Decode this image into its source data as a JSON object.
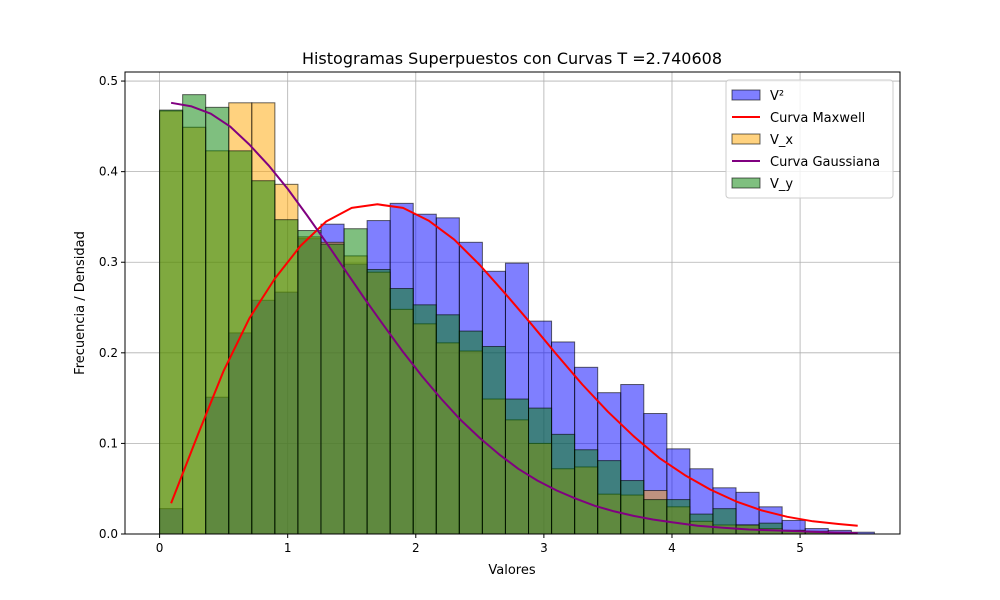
{
  "chart_data": {
    "type": "bar",
    "title": "Histogramas Superpuestos con Curvas T =2.740608",
    "xlabel": "Valores",
    "ylabel": "Frecuencia / Densidad",
    "xlim": [
      -0.27,
      5.78
    ],
    "ylim": [
      0,
      0.51
    ],
    "xticks": [
      0,
      1,
      2,
      3,
      4,
      5
    ],
    "yticks": [
      0.0,
      0.1,
      0.2,
      0.3,
      0.4,
      0.5
    ],
    "grid": true,
    "legend_position": "top-right",
    "bin_width": 0.18,
    "series": [
      {
        "name": "V²",
        "kind": "histogram",
        "color": "#0000ff",
        "opacity": 0.5,
        "x_start": 0.0,
        "values": [
          0.028,
          0.0,
          0.151,
          0.222,
          0.258,
          0.267,
          0.326,
          0.342,
          0.298,
          0.346,
          0.365,
          0.353,
          0.349,
          0.322,
          0.29,
          0.299,
          0.235,
          0.212,
          0.184,
          0.156,
          0.165,
          0.133,
          0.094,
          0.072,
          0.051,
          0.046,
          0.03,
          0.015,
          0.006,
          0.004,
          0.002,
          0.0,
          0.0,
          0.0,
          0.0,
          0.0,
          0.0,
          0.0,
          0.0,
          0.0,
          0.0,
          0.0,
          0.0,
          0.0
        ]
      },
      {
        "name": "Curva Maxwell",
        "kind": "line",
        "color": "#ff0000",
        "x": [
          0.09,
          0.3,
          0.5,
          0.7,
          0.9,
          1.1,
          1.3,
          1.5,
          1.7,
          1.9,
          2.1,
          2.3,
          2.5,
          2.7,
          2.9,
          3.1,
          3.3,
          3.5,
          3.7,
          3.9,
          4.1,
          4.3,
          4.5,
          4.7,
          4.9,
          5.1,
          5.3,
          5.45
        ],
        "y": [
          0.034,
          0.11,
          0.18,
          0.238,
          0.282,
          0.318,
          0.345,
          0.36,
          0.364,
          0.36,
          0.346,
          0.325,
          0.297,
          0.265,
          0.232,
          0.198,
          0.165,
          0.135,
          0.108,
          0.084,
          0.065,
          0.049,
          0.036,
          0.026,
          0.019,
          0.014,
          0.011,
          0.009
        ]
      },
      {
        "name": "V_x",
        "kind": "histogram",
        "color": "#ffa500",
        "opacity": 0.5,
        "x_start": 0.0,
        "values": [
          0.467,
          0.449,
          0.423,
          0.476,
          0.476,
          0.386,
          0.328,
          0.322,
          0.307,
          0.289,
          0.248,
          0.232,
          0.211,
          0.202,
          0.149,
          0.126,
          0.1,
          0.072,
          0.074,
          0.044,
          0.043,
          0.048,
          0.03,
          0.014,
          0.01,
          0.01,
          0.006,
          0.004,
          0.002,
          0.0,
          0.0,
          0.0
        ]
      },
      {
        "name": "Curva Gaussiana",
        "kind": "line",
        "color": "#800080",
        "x": [
          0.09,
          0.25,
          0.4,
          0.55,
          0.7,
          0.85,
          1.0,
          1.15,
          1.3,
          1.45,
          1.6,
          1.75,
          1.9,
          2.05,
          2.2,
          2.35,
          2.5,
          2.65,
          2.8,
          2.95,
          3.1,
          3.25,
          3.4,
          3.55,
          3.7,
          3.85,
          4.0,
          4.2,
          4.4,
          4.6,
          4.8,
          5.0,
          5.2,
          5.45
        ],
        "y": [
          0.476,
          0.472,
          0.464,
          0.45,
          0.43,
          0.407,
          0.381,
          0.352,
          0.322,
          0.291,
          0.26,
          0.23,
          0.201,
          0.174,
          0.149,
          0.126,
          0.106,
          0.088,
          0.072,
          0.059,
          0.048,
          0.039,
          0.031,
          0.025,
          0.02,
          0.016,
          0.013,
          0.009,
          0.007,
          0.005,
          0.004,
          0.003,
          0.002,
          0.001
        ]
      },
      {
        "name": "V_y",
        "kind": "histogram",
        "color": "#008000",
        "opacity": 0.5,
        "x_start": 0.0,
        "values": [
          0.468,
          0.485,
          0.471,
          0.423,
          0.39,
          0.347,
          0.335,
          0.32,
          0.337,
          0.292,
          0.271,
          0.253,
          0.242,
          0.224,
          0.207,
          0.149,
          0.139,
          0.11,
          0.093,
          0.081,
          0.059,
          0.038,
          0.038,
          0.022,
          0.028,
          0.01,
          0.012,
          0.004,
          0.003,
          0.002,
          0.0,
          0.0
        ]
      }
    ]
  }
}
